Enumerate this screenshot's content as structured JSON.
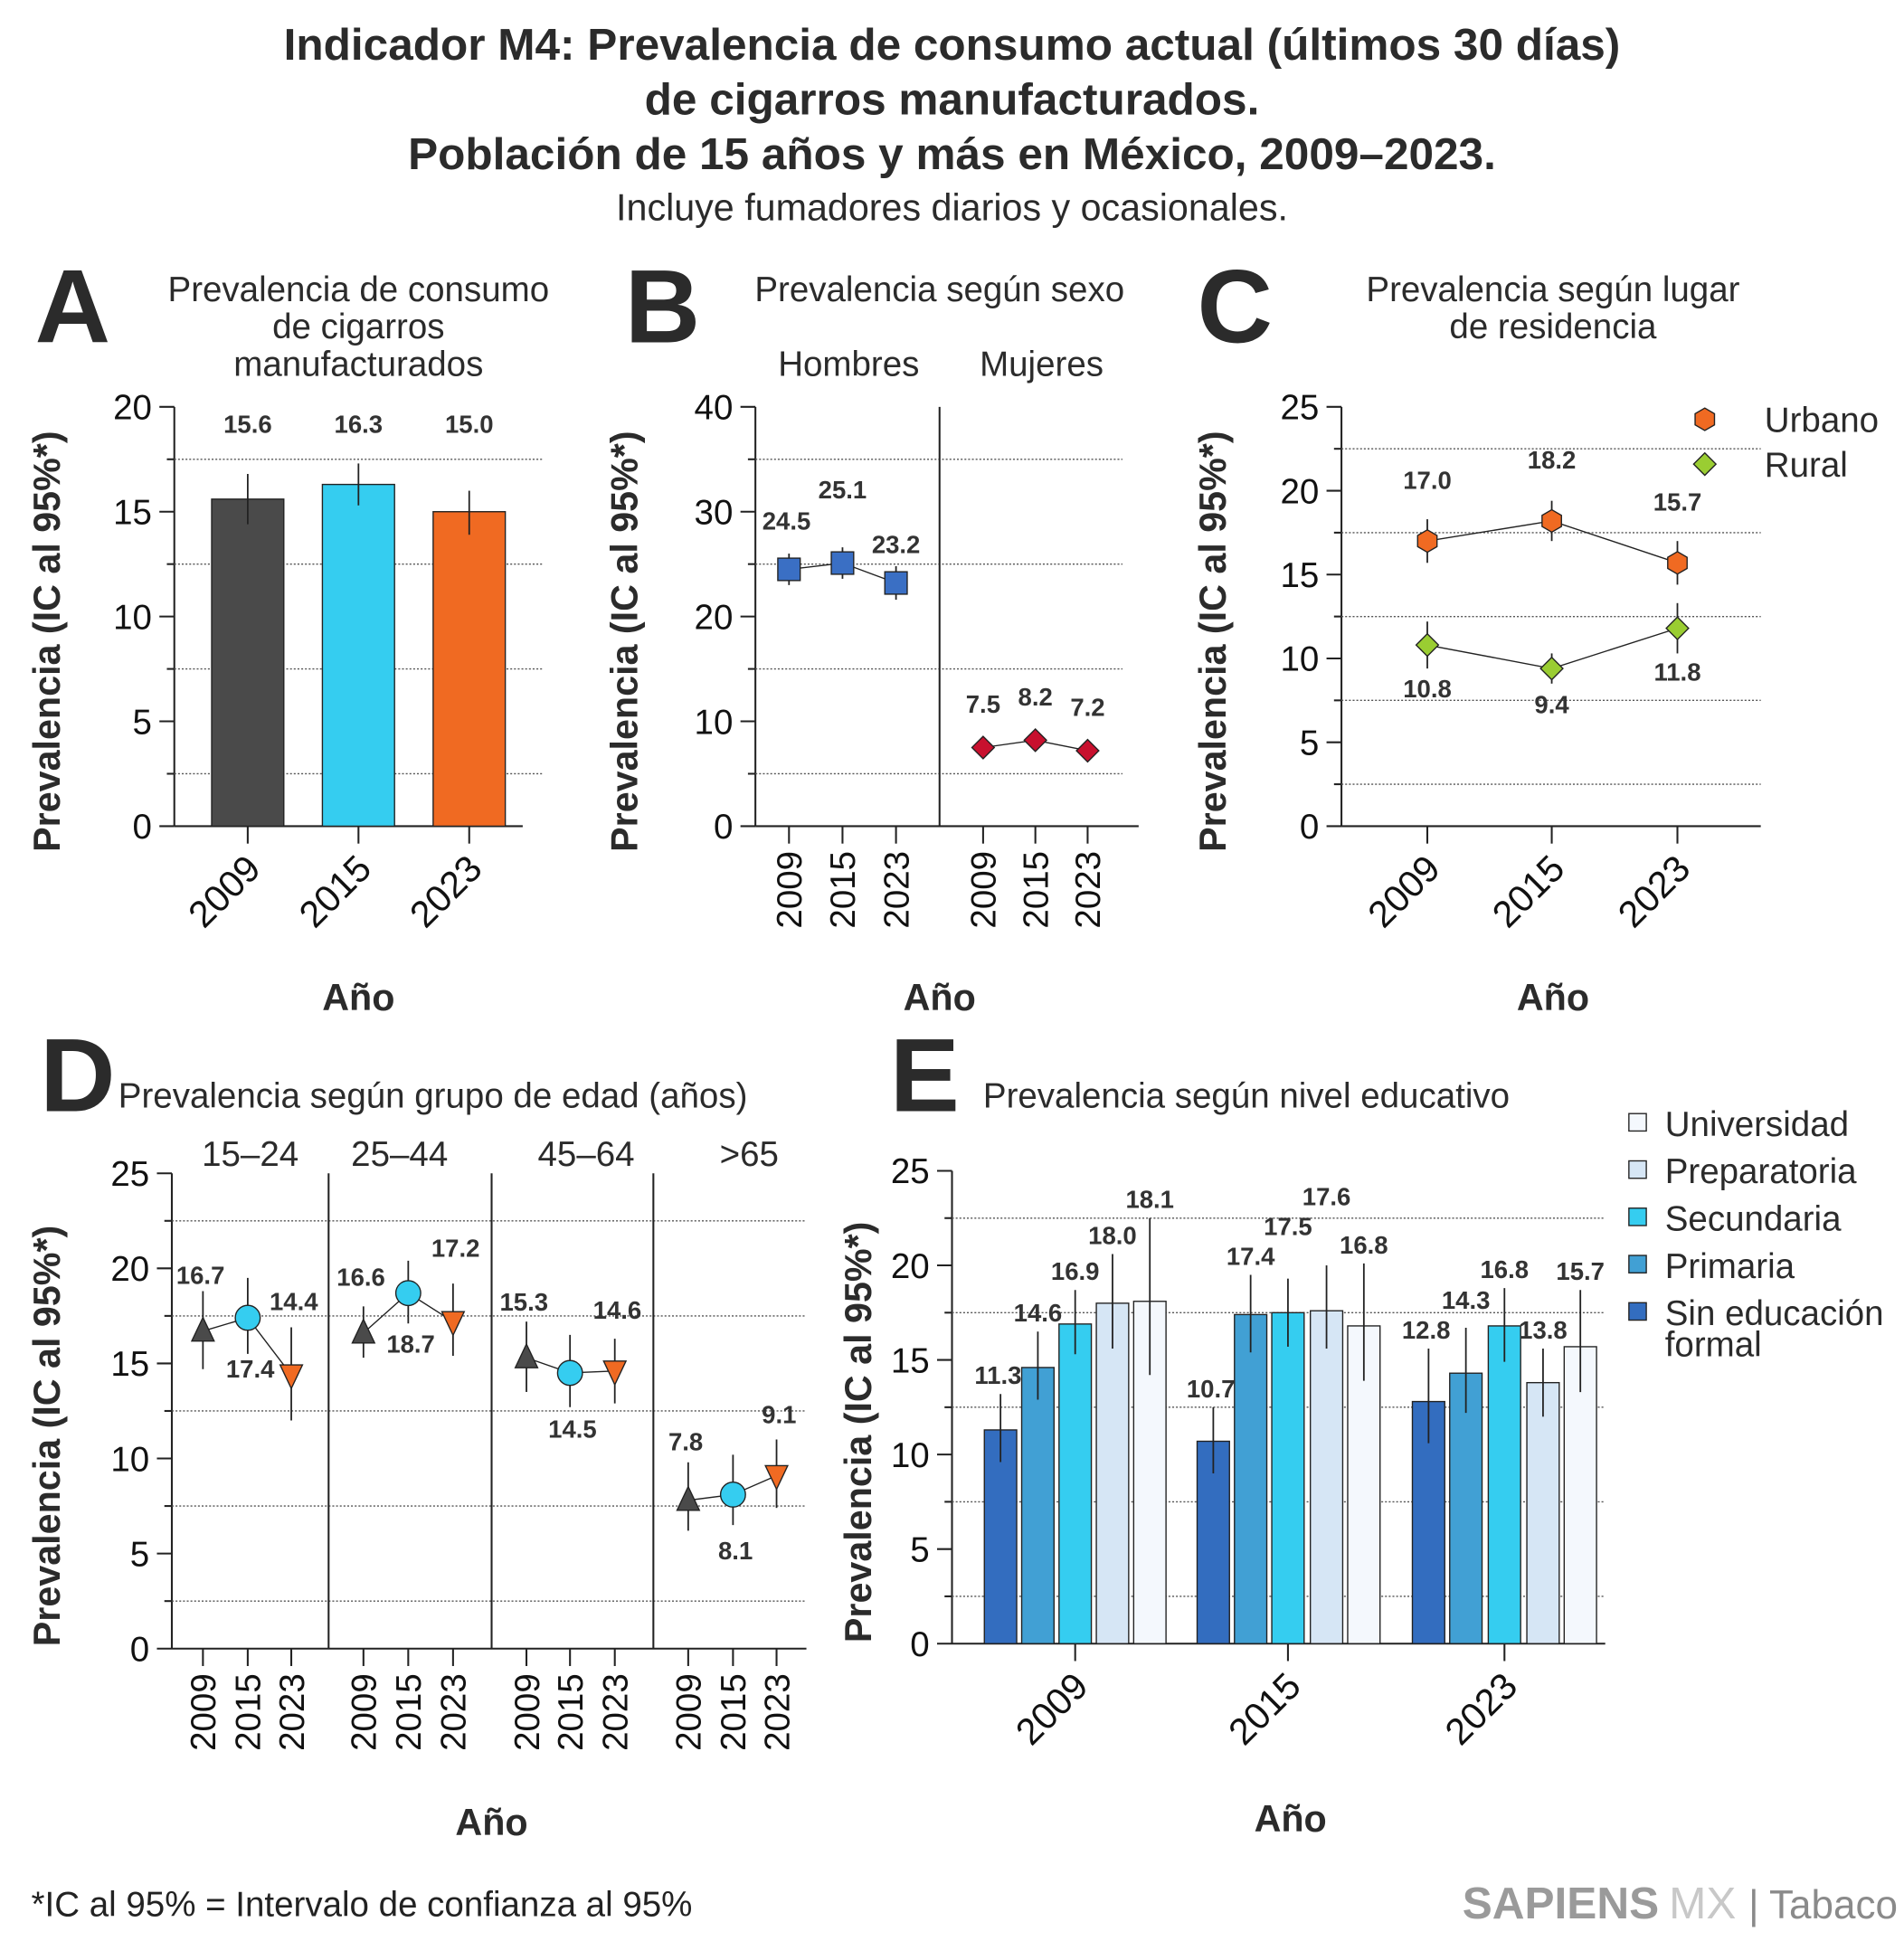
{
  "title": {
    "line1": "Indicador M4: Prevalencia de consumo actual (últimos 30 días)",
    "line2": "de  cigarros manufacturados.",
    "line3": "Población de 15 años y más en México, 2009–2023.",
    "subtitle": "Incluye fumadores diarios y ocasionales."
  },
  "footnote": "*IC al 95% = Intervalo de confianza al 95%",
  "logo": {
    "brand": "SAPIENS",
    "suffix": "MX",
    "section": "| Tabaco"
  },
  "chart_data": [
    {
      "panel": "A",
      "type": "bar",
      "title": [
        "Prevalencia de consumo",
        "de cigarros",
        "manufacturados"
      ],
      "ylabel": "Prevalencia (IC al 95%*)",
      "xlabel": "Año",
      "ylim": [
        0,
        20
      ],
      "yticks": [
        0,
        5,
        10,
        15,
        20
      ],
      "categories": [
        "2009",
        "2015",
        "2023"
      ],
      "values": [
        15.6,
        16.3,
        15.0
      ],
      "ci": [
        [
          14.4,
          16.8
        ],
        [
          15.3,
          17.3
        ],
        [
          13.9,
          16.0
        ]
      ],
      "labels": [
        "15.6",
        "16.3",
        "15.0"
      ],
      "colors": [
        "#4a4a4a",
        "#35cdf0",
        "#f06a22"
      ],
      "grid": "dotted at midpoints"
    },
    {
      "panel": "B",
      "type": "line",
      "title": "Prevalencia según sexo",
      "ylabel": "Prevalencia (IC al 95%*)",
      "xlabel": "Año",
      "ylim": [
        0,
        40
      ],
      "yticks": [
        0,
        10,
        20,
        30,
        40
      ],
      "categories": [
        "2009",
        "2015",
        "2023"
      ],
      "series": [
        {
          "name": "Hombres",
          "values": [
            24.5,
            25.1,
            23.2
          ],
          "ci": [
            [
              23.0,
              26.0
            ],
            [
              23.6,
              26.6
            ],
            [
              21.6,
              24.8
            ]
          ],
          "color": "#3a6fc4",
          "marker": "square"
        },
        {
          "name": "Mujeres",
          "values": [
            7.5,
            8.2,
            7.2
          ],
          "ci": [
            [
              6.8,
              8.2
            ],
            [
              7.5,
              8.9
            ],
            [
              6.6,
              7.8
            ]
          ],
          "color": "#c8102e",
          "marker": "diamond"
        }
      ]
    },
    {
      "panel": "C",
      "type": "line",
      "title": [
        "Prevalencia según lugar",
        "de residencia"
      ],
      "ylabel": "Prevalencia (IC al 95%*)",
      "xlabel": "Año",
      "ylim": [
        0,
        25
      ],
      "yticks": [
        0,
        5,
        10,
        15,
        20,
        25
      ],
      "categories": [
        "2009",
        "2015",
        "2023"
      ],
      "legend": "top-right",
      "series": [
        {
          "name": "Urbano",
          "values": [
            17.0,
            18.2,
            15.7
          ],
          "ci": [
            [
              15.7,
              18.3
            ],
            [
              17.0,
              19.4
            ],
            [
              14.4,
              17.0
            ]
          ],
          "color": "#f06a22",
          "marker": "hexagon"
        },
        {
          "name": "Rural",
          "values": [
            10.8,
            9.4,
            11.8
          ],
          "ci": [
            [
              9.4,
              12.2
            ],
            [
              8.5,
              10.3
            ],
            [
              10.3,
              13.3
            ]
          ],
          "color": "#9acd32",
          "marker": "diamond"
        }
      ]
    },
    {
      "panel": "D",
      "type": "line",
      "title": "Prevalencia según grupo de edad (años)",
      "ylabel": "Prevalencia (IC al 95%*)",
      "xlabel": "Año",
      "ylim": [
        0,
        25
      ],
      "yticks": [
        0,
        5,
        10,
        15,
        20,
        25
      ],
      "categories": [
        "2009",
        "2015",
        "2023"
      ],
      "colors": [
        "#4a4a4a",
        "#35cdf0",
        "#f06a22"
      ],
      "markers": [
        "triangle-up",
        "circle",
        "triangle-down"
      ],
      "groups": [
        {
          "name": "15–24",
          "values": [
            16.7,
            17.4,
            14.4
          ],
          "ci": [
            [
              14.7,
              18.8
            ],
            [
              15.5,
              19.5
            ],
            [
              12.0,
              16.9
            ]
          ]
        },
        {
          "name": "25–44",
          "values": [
            16.6,
            18.7,
            17.2
          ],
          "ci": [
            [
              15.3,
              18.0
            ],
            [
              17.1,
              20.4
            ],
            [
              15.4,
              19.2
            ]
          ]
        },
        {
          "name": "45–64",
          "values": [
            15.3,
            14.5,
            14.6
          ],
          "ci": [
            [
              13.5,
              17.2
            ],
            [
              12.7,
              16.5
            ],
            [
              12.9,
              16.3
            ]
          ]
        },
        {
          "name": ">65",
          "values": [
            7.8,
            8.1,
            9.1
          ],
          "ci": [
            [
              6.2,
              9.8
            ],
            [
              6.5,
              10.2
            ],
            [
              7.4,
              11.0
            ]
          ]
        }
      ]
    },
    {
      "panel": "E",
      "type": "bar",
      "title": "Prevalencia según nivel educativo",
      "ylabel": "Prevalencia (IC al 95%*)",
      "xlabel": "Año",
      "ylim": [
        0,
        25
      ],
      "yticks": [
        0,
        5,
        10,
        15,
        20,
        25
      ],
      "categories": [
        "2009",
        "2015",
        "2023"
      ],
      "legend": "right",
      "legend_order": [
        "Universidad",
        "Preparatoria",
        "Secundaria",
        "Primaria",
        "Sin educación formal"
      ],
      "series": [
        {
          "name": "Sin educación formal",
          "color": "#336dbf",
          "values": [
            11.3,
            10.7,
            12.8
          ],
          "ci": [
            [
              9.6,
              13.2
            ],
            [
              9.0,
              12.5
            ],
            [
              10.6,
              15.6
            ]
          ]
        },
        {
          "name": "Primaria",
          "color": "#41a0d4",
          "values": [
            14.6,
            17.4,
            14.3
          ],
          "ci": [
            [
              12.9,
              16.5
            ],
            [
              15.4,
              19.5
            ],
            [
              12.2,
              16.7
            ]
          ]
        },
        {
          "name": "Secundaria",
          "color": "#35cdf0",
          "values": [
            16.9,
            17.5,
            16.8
          ],
          "ci": [
            [
              15.3,
              18.7
            ],
            [
              15.7,
              19.3
            ],
            [
              14.9,
              18.8
            ]
          ]
        },
        {
          "name": "Preparatoria",
          "color": "#d6e6f5",
          "values": [
            18.0,
            17.6,
            13.8
          ],
          "ci": [
            [
              15.6,
              20.6
            ],
            [
              15.6,
              20.0
            ],
            [
              12.0,
              15.6
            ]
          ]
        },
        {
          "name": "Universidad",
          "color": "#f4f8fd",
          "values": [
            18.1,
            16.8,
            15.7
          ],
          "ci": [
            [
              14.2,
              22.5
            ],
            [
              13.9,
              20.1
            ],
            [
              13.3,
              18.7
            ]
          ]
        }
      ]
    }
  ]
}
